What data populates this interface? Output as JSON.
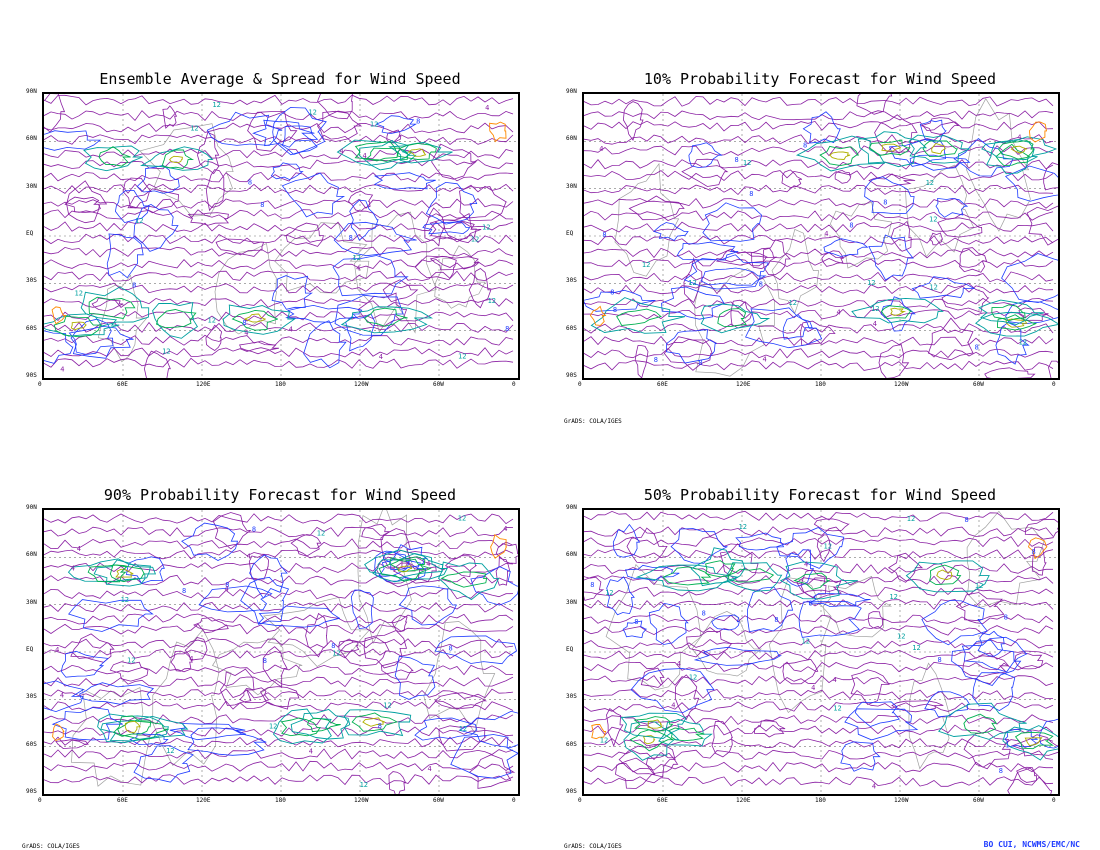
{
  "panels": [
    {
      "title": "Ensemble Average & Spread for Wind Speed",
      "credit": ""
    },
    {
      "title": "10% Probability Forecast for Wind Speed",
      "credit": "GrADS: COLA/IGES"
    },
    {
      "title": "90% Probability Forecast for Wind Speed",
      "credit": "GrADS: COLA/IGES"
    },
    {
      "title": "50% Probability Forecast for Wind Speed",
      "credit": "GrADS: COLA/IGES"
    }
  ],
  "lat_ticks": [
    "90N",
    "60N",
    "30N",
    "EQ",
    "30S",
    "60S",
    "90S"
  ],
  "lon_ticks": [
    "0",
    "60E",
    "120E",
    "180",
    "120W",
    "60W",
    "0"
  ],
  "footer_credit": "BO CUI, NCWMS/EMC/NC",
  "contour_levels": [
    "4",
    "8",
    "12",
    "16",
    "20"
  ],
  "contour_colors": [
    "#8a1fa3",
    "#1f3cff",
    "#00a0a0",
    "#00b050",
    "#b0b000",
    "#ff8a00"
  ],
  "coast_color": "#a0a0a0"
}
